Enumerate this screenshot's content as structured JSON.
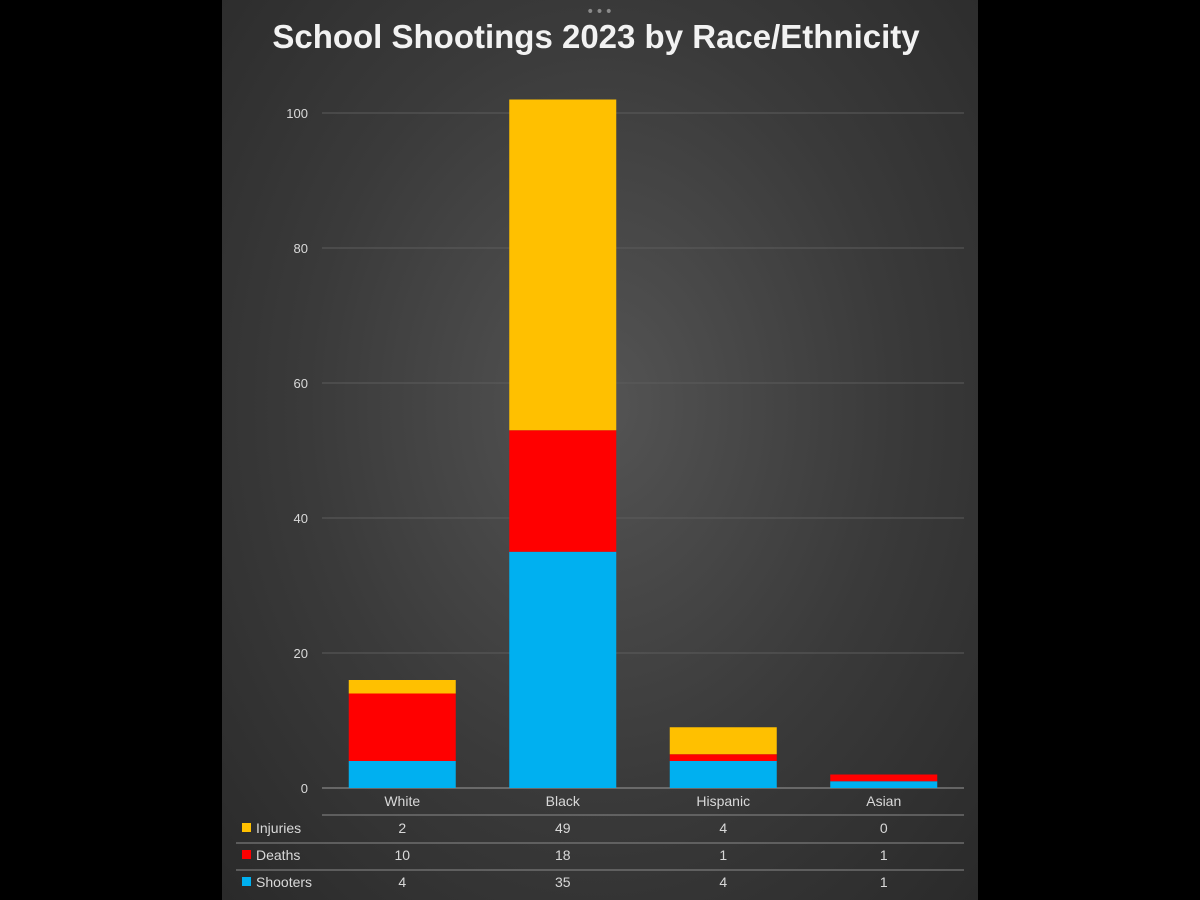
{
  "chart_data": {
    "type": "bar",
    "stacked": true,
    "title": "School Shootings 2023 by Race/Ethnicity",
    "categories": [
      "White",
      "Black",
      "Hispanic",
      "Asian"
    ],
    "series": [
      {
        "name": "Shooters",
        "color": "#00b0f0",
        "values": [
          4,
          35,
          4,
          1
        ]
      },
      {
        "name": "Deaths",
        "color": "#ff0000",
        "values": [
          10,
          18,
          1,
          1
        ]
      },
      {
        "name": "Injuries",
        "color": "#ffc000",
        "values": [
          2,
          49,
          4,
          0
        ]
      }
    ],
    "table_order": [
      "Injuries",
      "Deaths",
      "Shooters"
    ],
    "ylim": [
      0,
      100
    ],
    "yticks": [
      0,
      20,
      40,
      60,
      80,
      100
    ],
    "grid": true,
    "legend": "data-table-bottom"
  },
  "window": {
    "handle": "•••"
  }
}
